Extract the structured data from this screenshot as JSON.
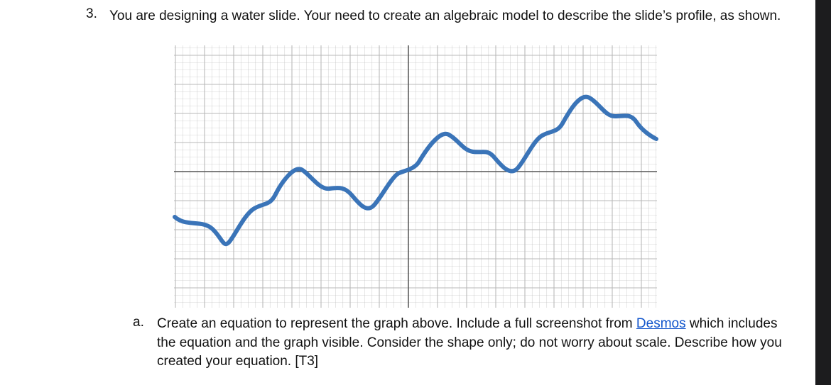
{
  "question": {
    "number": "3.",
    "text": "You are designing a water slide. Your need to create an algebraic model to describe the slide’s profile, as shown."
  },
  "part_a": {
    "letter": "a.",
    "text_before": "Create an equation to represent the graph above.  Include a full screenshot from ",
    "link_text": "Desmos",
    "text_after": " which includes the equation and the graph visible. Consider the shape only; do not worry about scale. Describe how you created your equation. [T3]"
  },
  "colors": {
    "curve": "#3a74b8",
    "grid": "#b5b5b5",
    "axis": "#555555",
    "link": "#1155cc"
  }
}
